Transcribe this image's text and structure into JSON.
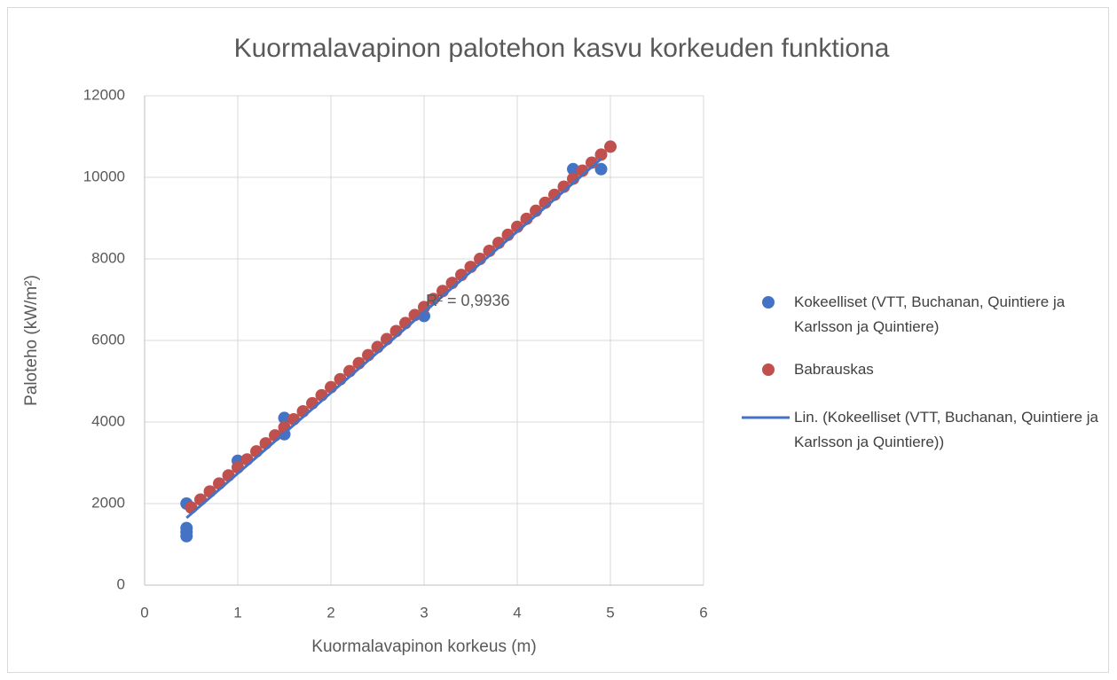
{
  "chart_data": {
    "type": "scatter",
    "title": "Kuormalavapinon palotehon kasvu korkeuden funktiona",
    "x_label": "Kuormalavapinon korkeus (m)",
    "y_label": "Paloteho (kW/m²)",
    "xlim": [
      0,
      6
    ],
    "xticks": [
      0,
      1,
      2,
      3,
      4,
      5,
      6
    ],
    "ylim": [
      0,
      12000
    ],
    "yticks": [
      0,
      2000,
      4000,
      6000,
      8000,
      10000,
      12000
    ],
    "grid": true,
    "legend": "right",
    "series": [
      {
        "name": "Kokeelliset (VTT, Buchanan, Quintiere ja Karlsson ja Quintiere)",
        "color": "#4472c4",
        "x": [
          0.45,
          0.45,
          0.45,
          0.45,
          1,
          1.5,
          1.5,
          3,
          4.6,
          4.9
        ],
        "values": [
          1200,
          1300,
          1400,
          2000,
          3050,
          4100,
          3700,
          6600,
          10200,
          10200
        ]
      },
      {
        "name": "Babrauskas",
        "color": "#c0504d",
        "x": [
          0.5,
          0.6,
          0.7,
          0.8,
          0.9,
          1.0,
          1.1,
          1.2,
          1.3,
          1.4,
          1.5,
          1.6,
          1.7,
          1.8,
          1.9,
          2.0,
          2.1,
          2.2,
          2.3,
          2.4,
          2.5,
          2.6,
          2.7,
          2.8,
          2.9,
          3.0,
          3.1,
          3.2,
          3.3,
          3.4,
          3.5,
          3.6,
          3.7,
          3.8,
          3.9,
          4.0,
          4.1,
          4.2,
          4.3,
          4.4,
          4.5,
          4.6,
          4.7,
          4.8,
          4.9,
          5.0
        ],
        "values": [
          1902,
          2099,
          2296,
          2492,
          2689,
          2886,
          3082,
          3279,
          3476,
          3672,
          3869,
          4066,
          4262,
          4459,
          4656,
          4852,
          5049,
          5246,
          5442,
          5639,
          5836,
          6032,
          6229,
          6426,
          6622,
          6819,
          7016,
          7212,
          7409,
          7606,
          7802,
          7999,
          8196,
          8392,
          8589,
          8786,
          8982,
          9179,
          9376,
          9572,
          9769,
          9966,
          10162,
          10359,
          10556,
          10752
        ]
      }
    ],
    "trendline": {
      "name": "Lin. (Kokeelliset (VTT, Buchanan, Quintiere ja Karlsson ja Quintiere))",
      "color": "#4472c4",
      "x": [
        0.45,
        4.9
      ],
      "values": [
        1650,
        10450
      ]
    },
    "annotation": "R² = 0,9936"
  }
}
